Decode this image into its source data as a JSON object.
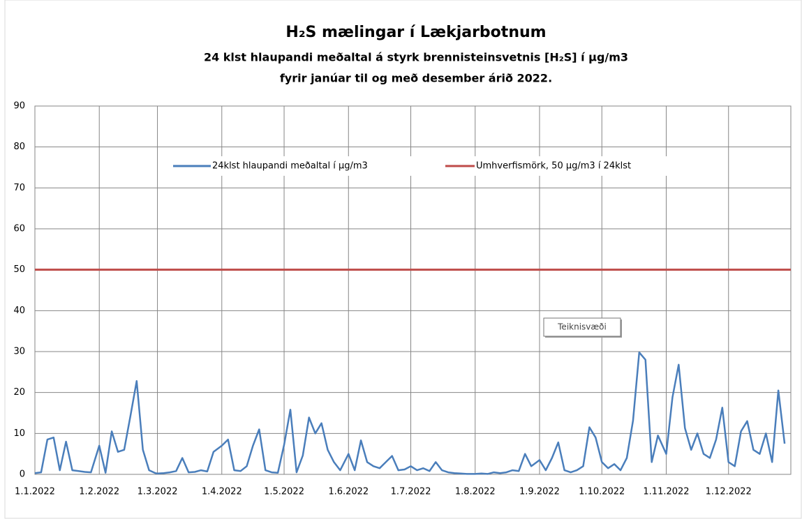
{
  "chart_data": {
    "type": "line",
    "title": "H₂S mælingar í Lækjarbotnum",
    "subtitle": [
      "24 klst hlaupandi meðaltal á styrk brennisteinsvetnis [H₂S] í µg/m3",
      "fyrir janúar til og með desember árið 2022."
    ],
    "annotation": "Teiknisvæði",
    "x": [
      "1.1.2022",
      "4.1.2022",
      "7.1.2022",
      "10.1.2022",
      "13.1.2022",
      "16.1.2022",
      "19.1.2022",
      "22.1.2022",
      "25.1.2022",
      "28.1.2022",
      "1.2.2022",
      "4.2.2022",
      "7.2.2022",
      "10.2.2022",
      "13.2.2022",
      "16.2.2022",
      "19.2.2022",
      "22.2.2022",
      "25.2.2022",
      "28.2.2022",
      "1.3.2022",
      "4.3.2022",
      "7.3.2022",
      "10.3.2022",
      "13.3.2022",
      "16.3.2022",
      "19.3.2022",
      "22.3.2022",
      "25.3.2022",
      "28.3.2022",
      "1.4.2022",
      "4.4.2022",
      "7.4.2022",
      "10.4.2022",
      "13.4.2022",
      "16.4.2022",
      "19.4.2022",
      "22.4.2022",
      "25.4.2022",
      "28.4.2022",
      "1.5.2022",
      "4.5.2022",
      "7.5.2022",
      "10.5.2022",
      "13.5.2022",
      "16.5.2022",
      "19.5.2022",
      "22.5.2022",
      "25.5.2022",
      "28.5.2022",
      "1.6.2022",
      "4.6.2022",
      "7.6.2022",
      "10.6.2022",
      "13.6.2022",
      "16.6.2022",
      "19.6.2022",
      "22.6.2022",
      "25.6.2022",
      "28.6.2022",
      "1.7.2022",
      "4.7.2022",
      "7.7.2022",
      "10.7.2022",
      "13.7.2022",
      "16.7.2022",
      "19.7.2022",
      "22.7.2022",
      "25.7.2022",
      "28.7.2022",
      "1.8.2022",
      "4.8.2022",
      "7.8.2022",
      "10.8.2022",
      "13.8.2022",
      "16.8.2022",
      "19.8.2022",
      "22.8.2022",
      "25.8.2022",
      "28.8.2022",
      "1.9.2022",
      "4.9.2022",
      "7.9.2022",
      "10.9.2022",
      "13.9.2022",
      "16.9.2022",
      "19.9.2022",
      "22.9.2022",
      "25.9.2022",
      "28.9.2022",
      "1.10.2022",
      "4.10.2022",
      "7.10.2022",
      "10.10.2022",
      "13.10.2022",
      "16.10.2022",
      "19.10.2022",
      "22.10.2022",
      "25.10.2022",
      "28.10.2022",
      "1.11.2022",
      "4.11.2022",
      "7.11.2022",
      "10.11.2022",
      "13.11.2022",
      "16.11.2022",
      "19.11.2022",
      "22.11.2022",
      "25.11.2022",
      "28.11.2022",
      "1.12.2022",
      "4.12.2022",
      "7.12.2022",
      "10.12.2022",
      "13.12.2022",
      "16.12.2022",
      "19.12.2022",
      "22.12.2022",
      "25.12.2022",
      "28.12.2022"
    ],
    "series": [
      {
        "name": "24klst hlaupandi meðaltal í µg/m3",
        "color": "#4a7ebb",
        "values": [
          0.3,
          0.5,
          8.5,
          9,
          1,
          8,
          1,
          0.8,
          0.6,
          0.5,
          7,
          0.4,
          10.5,
          5.5,
          6,
          14.3,
          22.8,
          6,
          1,
          0.3,
          0.2,
          0.3,
          0.5,
          0.8,
          4,
          0.5,
          0.6,
          1,
          0.7,
          5.5,
          7,
          8.5,
          1,
          0.8,
          2,
          7,
          11,
          1,
          0.5,
          0.4,
          7.2,
          15.8,
          0.5,
          4.6,
          13.9,
          10,
          12.5,
          6,
          3,
          1,
          5,
          1,
          8.3,
          3,
          2,
          1.5,
          3,
          4.5,
          1,
          1.2,
          2,
          1,
          1.5,
          0.8,
          3,
          1,
          0.5,
          0.3,
          0.2,
          0.1,
          0.1,
          0.2,
          0.1,
          0.5,
          0.3,
          0.5,
          1,
          0.8,
          5,
          2,
          3.5,
          1,
          4,
          7.8,
          1,
          0.5,
          1,
          2,
          11.5,
          9,
          3,
          1.5,
          2.5,
          1,
          4,
          13.1,
          29.8,
          28,
          3,
          9.5,
          5,
          18.8,
          26.8,
          11.3,
          6,
          10,
          5,
          4,
          8.5,
          16.3,
          3,
          2,
          10.5,
          13,
          6,
          5,
          10,
          3,
          20.5,
          7.5
        ]
      }
    ],
    "reference_line": {
      "name": "Umhverfismörk, 50 µg/m3 í 24klst",
      "color": "#be4b48",
      "value": 50
    },
    "xlim": [
      "1.1.2022",
      "31.12.2022"
    ],
    "xticks": [
      "1.1.2022",
      "1.2.2022",
      "1.3.2022",
      "1.4.2022",
      "1.5.2022",
      "1.6.2022",
      "1.7.2022",
      "1.8.2022",
      "1.9.2022",
      "1.10.2022",
      "1.11.2022",
      "1.12.2022"
    ],
    "ylim": [
      0,
      90
    ],
    "yticks": [
      0,
      10,
      20,
      30,
      40,
      50,
      60,
      70,
      80,
      90
    ],
    "grid": true,
    "legend": "top"
  }
}
